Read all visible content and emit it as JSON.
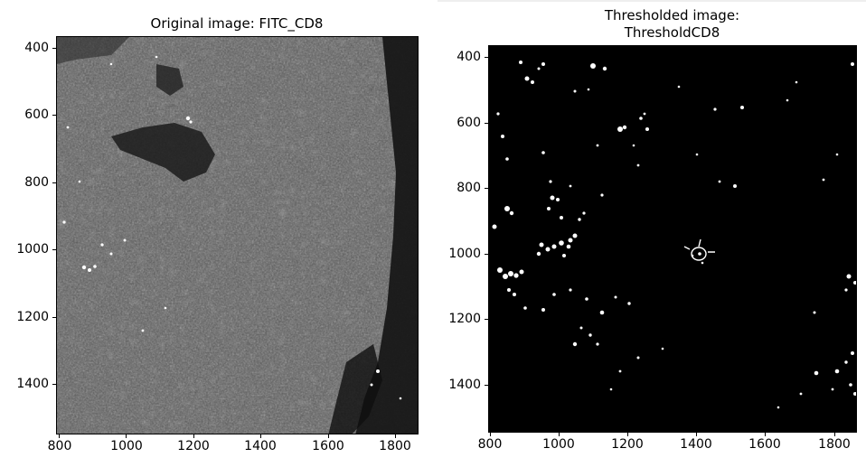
{
  "left_panel": {
    "title": "Original image: FITC_CD8",
    "x_ticks": [
      "800",
      "1000",
      "1200",
      "1400",
      "1600",
      "1800"
    ],
    "y_ticks": [
      "400",
      "600",
      "800",
      "1000",
      "1200",
      "1400"
    ],
    "image_description_color": "#6a6a6a"
  },
  "right_panel": {
    "title_line1": "Thresholded image:",
    "title_line2": "ThresholdCD8",
    "x_ticks": [
      "800",
      "1000",
      "1200",
      "1400",
      "1600",
      "1800"
    ],
    "y_ticks": [
      "400",
      "600",
      "800",
      "1000",
      "1200",
      "1400"
    ]
  },
  "colors": {
    "background": "#ffffff",
    "image_dark": "#000000",
    "tissue_gray": "#5c5c5c",
    "spot_white": "#ffffff"
  }
}
